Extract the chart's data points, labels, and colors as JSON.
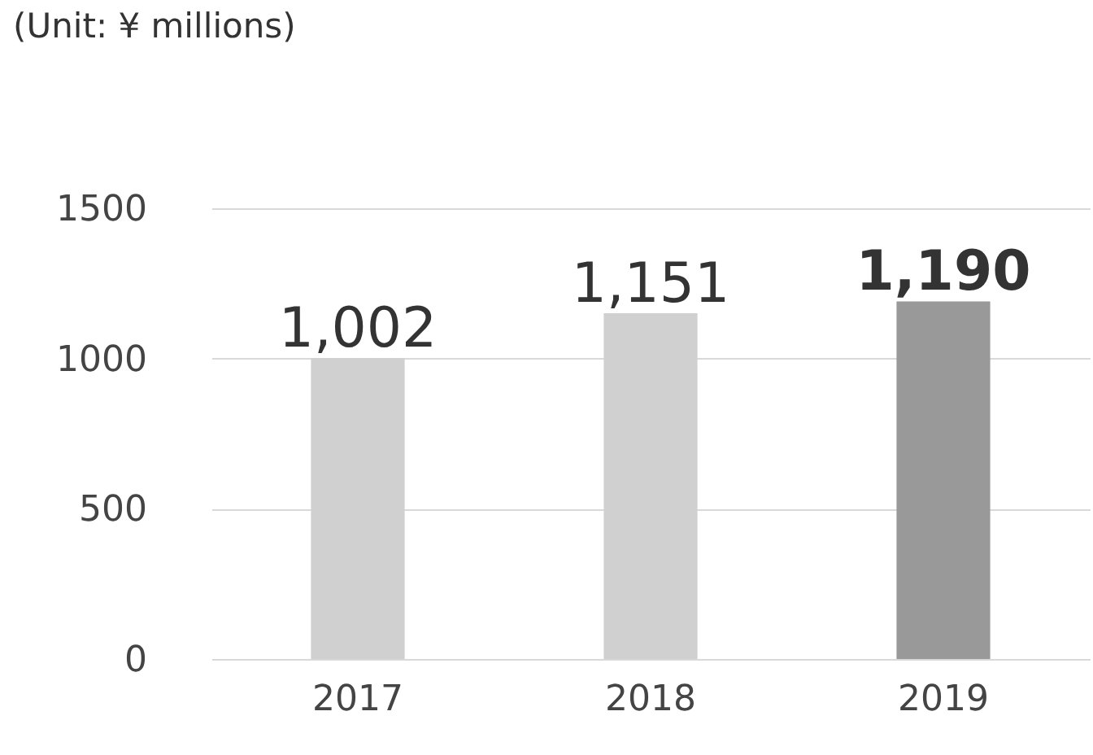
{
  "chart_data": {
    "type": "bar",
    "categories": [
      "2017",
      "2018",
      "2019"
    ],
    "values": [
      1002,
      1151,
      1190
    ],
    "colors": [
      "#d0d0d0",
      "#d0d0d0",
      "#999999"
    ],
    "value_labels": [
      "1,002",
      "1,151",
      "1,190"
    ],
    "ylim": [
      0,
      1500
    ],
    "yticks": [
      0,
      500,
      1000,
      1500
    ],
    "grid": "y",
    "annotations": [
      "(Unit: ¥ millions)"
    ]
  }
}
